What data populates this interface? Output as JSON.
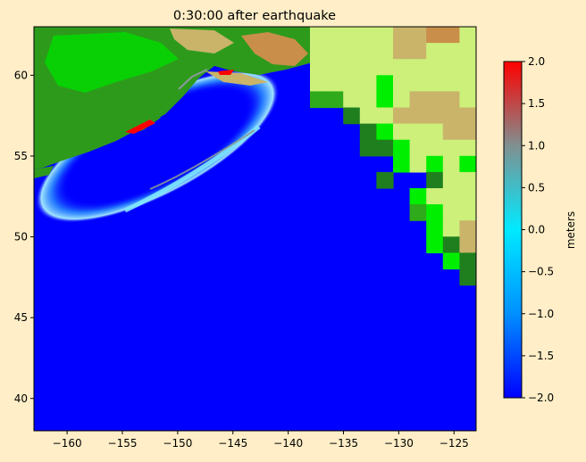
{
  "chart_data": {
    "type": "heatmap",
    "title": "0:30:00 after earthquake",
    "xlabel": "",
    "ylabel": "",
    "xlim": [
      -163,
      -123
    ],
    "ylim": [
      38,
      63
    ],
    "x_ticks": [
      -160,
      -155,
      -150,
      -145,
      -140,
      -135,
      -130,
      -125
    ],
    "x_tick_labels": [
      "−160",
      "−155",
      "−150",
      "−145",
      "−140",
      "−135",
      "−130",
      "−125"
    ],
    "y_ticks": [
      40,
      45,
      50,
      55,
      60
    ],
    "y_tick_labels": [
      "40",
      "45",
      "50",
      "55",
      "60"
    ],
    "colorbar": {
      "label": "meters",
      "range": [
        -2.0,
        2.0
      ],
      "ticks": [
        -2.0,
        -1.5,
        -1.0,
        -0.5,
        0.0,
        0.5,
        1.0,
        1.5,
        2.0
      ],
      "tick_labels": [
        "−2.0",
        "−1.5",
        "−1.0",
        "−0.5",
        "0.0",
        "0.5",
        "1.0",
        "1.5",
        "2.0"
      ],
      "colormap": [
        "#0000ff",
        "#00e5ff",
        "#808080",
        "#ff0000"
      ]
    },
    "background_level": -2.0,
    "wave_front": {
      "center": [
        -152.5,
        56.2
      ],
      "outer_lon_range": [
        -161.5,
        -142.5
      ],
      "outer_lat_range": [
        51.3,
        60.0
      ],
      "max_amplitude_m": 1.3
    },
    "land_colors": {
      "dark_green": "#1f7f1f",
      "green": "#2eaa1a",
      "bright_green": "#00ee00",
      "light_green": "#ccf07a",
      "tan": "#c9b46a",
      "brown": "#c98f4a"
    }
  }
}
